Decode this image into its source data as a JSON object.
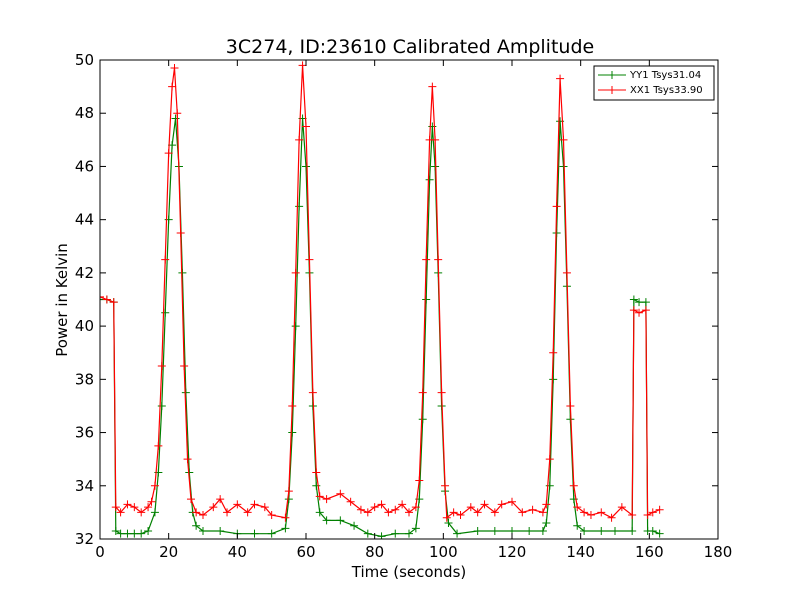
{
  "chart_data": {
    "type": "line",
    "title": "3C274, ID:23610 Calibrated Amplitude",
    "xlabel": "Time (seconds)",
    "ylabel": "Power in Kelvin",
    "xlim": [
      0,
      180
    ],
    "ylim": [
      32,
      50
    ],
    "xticks": [
      0,
      20,
      40,
      60,
      80,
      100,
      120,
      140,
      160,
      180
    ],
    "yticks": [
      32,
      34,
      36,
      38,
      40,
      42,
      44,
      46,
      48,
      50
    ],
    "grid": false,
    "legend_position": "top-right",
    "markers": "plus",
    "series": [
      {
        "name": "YY1 Tsys31.04",
        "color": "#008000",
        "points": [
          [
            0,
            41.0
          ],
          [
            2,
            41.0
          ],
          [
            4,
            40.9
          ],
          [
            4.6,
            32.3
          ],
          [
            6,
            32.2
          ],
          [
            8,
            32.2
          ],
          [
            10,
            32.2
          ],
          [
            12,
            32.2
          ],
          [
            14,
            32.3
          ],
          [
            16,
            33.0
          ],
          [
            17,
            34.5
          ],
          [
            18,
            37.0
          ],
          [
            19,
            40.5
          ],
          [
            20,
            44.0
          ],
          [
            21,
            46.8
          ],
          [
            22,
            47.8
          ],
          [
            23,
            46.0
          ],
          [
            24,
            42.0
          ],
          [
            25,
            37.5
          ],
          [
            26,
            34.5
          ],
          [
            27,
            33.0
          ],
          [
            28,
            32.5
          ],
          [
            30,
            32.3
          ],
          [
            35,
            32.3
          ],
          [
            40,
            32.2
          ],
          [
            45,
            32.2
          ],
          [
            50,
            32.2
          ],
          [
            54,
            32.4
          ],
          [
            55,
            33.5
          ],
          [
            56,
            36.0
          ],
          [
            57,
            40.0
          ],
          [
            58,
            44.5
          ],
          [
            59,
            47.8
          ],
          [
            60,
            46.0
          ],
          [
            61,
            42.0
          ],
          [
            62,
            37.0
          ],
          [
            63,
            34.0
          ],
          [
            64,
            33.0
          ],
          [
            66,
            32.7
          ],
          [
            70,
            32.7
          ],
          [
            74,
            32.5
          ],
          [
            78,
            32.2
          ],
          [
            82,
            32.1
          ],
          [
            86,
            32.2
          ],
          [
            90,
            32.2
          ],
          [
            92,
            32.4
          ],
          [
            93,
            33.5
          ],
          [
            94,
            36.5
          ],
          [
            95,
            41.0
          ],
          [
            96,
            45.5
          ],
          [
            96.8,
            47.5
          ],
          [
            97.6,
            46.0
          ],
          [
            98.5,
            42.0
          ],
          [
            99.5,
            37.0
          ],
          [
            100.5,
            33.8
          ],
          [
            101.5,
            32.6
          ],
          [
            104,
            32.2
          ],
          [
            110,
            32.3
          ],
          [
            115,
            32.3
          ],
          [
            120,
            32.3
          ],
          [
            125,
            32.3
          ],
          [
            129,
            32.3
          ],
          [
            130,
            32.6
          ],
          [
            131,
            34.0
          ],
          [
            132,
            38.0
          ],
          [
            133,
            43.5
          ],
          [
            134,
            47.7
          ],
          [
            135,
            46.0
          ],
          [
            136,
            41.5
          ],
          [
            137,
            36.5
          ],
          [
            138,
            33.5
          ],
          [
            139,
            32.5
          ],
          [
            141,
            32.3
          ],
          [
            146,
            32.3
          ],
          [
            150,
            32.3
          ],
          [
            155,
            32.3
          ],
          [
            155.5,
            41.0
          ],
          [
            157,
            40.9
          ],
          [
            159,
            40.9
          ],
          [
            159.5,
            32.3
          ],
          [
            161,
            32.3
          ],
          [
            163,
            32.2
          ]
        ]
      },
      {
        "name": "XX1 Tsys33.90",
        "color": "#ff0000",
        "points": [
          [
            0,
            41.1
          ],
          [
            2,
            41.0
          ],
          [
            4,
            40.9
          ],
          [
            4.6,
            33.2
          ],
          [
            6,
            33.0
          ],
          [
            8,
            33.3
          ],
          [
            10,
            33.2
          ],
          [
            12,
            33.0
          ],
          [
            14,
            33.2
          ],
          [
            15,
            33.4
          ],
          [
            16,
            34.0
          ],
          [
            17,
            35.5
          ],
          [
            18,
            38.5
          ],
          [
            19,
            42.5
          ],
          [
            20,
            46.5
          ],
          [
            21,
            49.0
          ],
          [
            21.7,
            49.7
          ],
          [
            22.5,
            48.0
          ],
          [
            23.5,
            43.5
          ],
          [
            24.5,
            38.5
          ],
          [
            25.5,
            35.0
          ],
          [
            26.5,
            33.5
          ],
          [
            28,
            33.0
          ],
          [
            30,
            32.9
          ],
          [
            33,
            33.2
          ],
          [
            35,
            33.5
          ],
          [
            37,
            33.0
          ],
          [
            40,
            33.3
          ],
          [
            43,
            33.0
          ],
          [
            45,
            33.3
          ],
          [
            48,
            33.2
          ],
          [
            50,
            32.9
          ],
          [
            54,
            32.8
          ],
          [
            55,
            33.8
          ],
          [
            56,
            37.0
          ],
          [
            57,
            42.0
          ],
          [
            58,
            47.0
          ],
          [
            59,
            49.8
          ],
          [
            60,
            47.5
          ],
          [
            61,
            42.5
          ],
          [
            62,
            37.5
          ],
          [
            63,
            34.5
          ],
          [
            64,
            33.6
          ],
          [
            66,
            33.5
          ],
          [
            70,
            33.7
          ],
          [
            73,
            33.4
          ],
          [
            76,
            33.1
          ],
          [
            78,
            33.0
          ],
          [
            80,
            33.2
          ],
          [
            82,
            33.3
          ],
          [
            84,
            33.0
          ],
          [
            86,
            33.1
          ],
          [
            88,
            33.3
          ],
          [
            90,
            33.0
          ],
          [
            92,
            33.2
          ],
          [
            93,
            34.2
          ],
          [
            94,
            37.5
          ],
          [
            95,
            42.5
          ],
          [
            96,
            47.0
          ],
          [
            96.8,
            49.0
          ],
          [
            97.6,
            47.0
          ],
          [
            98.5,
            42.5
          ],
          [
            99.5,
            37.5
          ],
          [
            100.5,
            34.0
          ],
          [
            101,
            32.8
          ],
          [
            103,
            33.0
          ],
          [
            105,
            32.9
          ],
          [
            108,
            33.2
          ],
          [
            110,
            33.0
          ],
          [
            112,
            33.3
          ],
          [
            115,
            33.0
          ],
          [
            117,
            33.3
          ],
          [
            120,
            33.4
          ],
          [
            123,
            33.0
          ],
          [
            126,
            33.1
          ],
          [
            129,
            33.0
          ],
          [
            130,
            33.3
          ],
          [
            131,
            35.0
          ],
          [
            132,
            39.0
          ],
          [
            133,
            44.5
          ],
          [
            134,
            49.3
          ],
          [
            135,
            47.0
          ],
          [
            136,
            42.0
          ],
          [
            137,
            37.0
          ],
          [
            138,
            34.0
          ],
          [
            139,
            33.2
          ],
          [
            141,
            33.0
          ],
          [
            143,
            32.9
          ],
          [
            146,
            33.0
          ],
          [
            149,
            32.8
          ],
          [
            152,
            33.2
          ],
          [
            155,
            32.9
          ],
          [
            155.5,
            40.6
          ],
          [
            157,
            40.5
          ],
          [
            159,
            40.6
          ],
          [
            159.5,
            32.9
          ],
          [
            161,
            33.0
          ],
          [
            163,
            33.1
          ]
        ]
      }
    ]
  }
}
